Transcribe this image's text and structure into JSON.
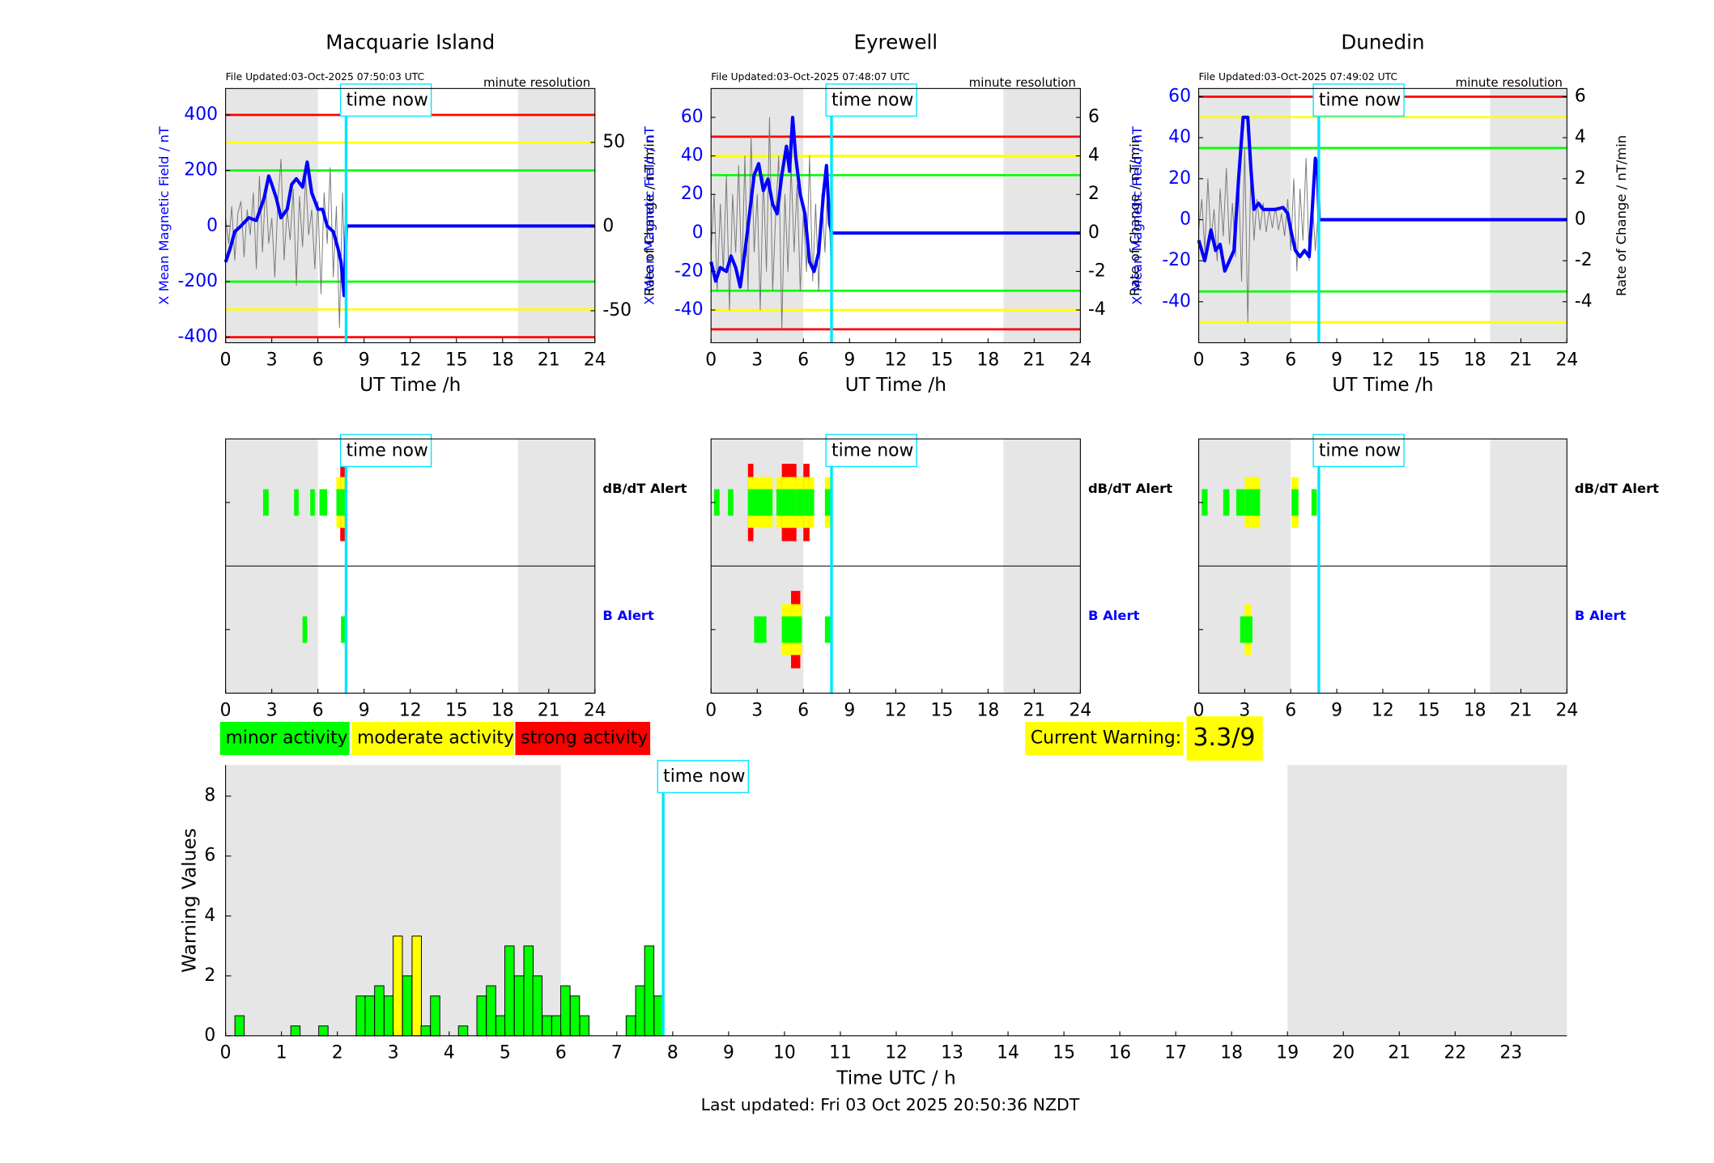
{
  "chart_data": [
    {
      "type": "line",
      "title": "Macquarie Island",
      "file_note": "File Updated:03-Oct-2025 07:50:03 UTC",
      "resolution": "minute resolution",
      "xlabel": "UT Time /h",
      "ylabel": "X Mean Magnetic Field / nT",
      "y2label": "Rate of Change / nT/min",
      "xlim": [
        0,
        24
      ],
      "xticks": [
        0,
        3,
        6,
        9,
        12,
        15,
        18,
        21,
        24
      ],
      "ylim": [
        -420,
        495
      ],
      "yticks": [
        -400,
        -200,
        0,
        200,
        400
      ],
      "y2lim": [
        -69,
        82
      ],
      "y2ticks": [
        -50,
        0,
        50
      ],
      "shade": [
        [
          0,
          6
        ],
        [
          19,
          24
        ]
      ],
      "time_now": 7.83,
      "time_now_label": "time now",
      "thresholds": [
        {
          "value": 400,
          "color": "#ff0000"
        },
        {
          "value": 300,
          "color": "#ffff00"
        },
        {
          "value": 200,
          "color": "#00ff00"
        },
        {
          "value": -200,
          "color": "#00ff00"
        },
        {
          "value": -300,
          "color": "#ffff00"
        },
        {
          "value": -400,
          "color": "#ff0000"
        }
      ],
      "series": [
        {
          "name": "Rate of Change",
          "axis": "y2",
          "color": "#777777",
          "x": [
            0,
            0.2,
            0.4,
            0.6,
            0.8,
            1,
            1.2,
            1.4,
            1.6,
            1.8,
            2,
            2.2,
            2.4,
            2.6,
            2.8,
            3,
            3.2,
            3.4,
            3.6,
            3.8,
            4,
            4.2,
            4.4,
            4.6,
            4.8,
            5,
            5.2,
            5.4,
            5.6,
            5.8,
            6,
            6.2,
            6.4,
            6.6,
            6.8,
            7,
            7.2,
            7.4,
            7.6,
            7.8
          ],
          "values": [
            5,
            -10,
            12,
            -20,
            8,
            15,
            -18,
            10,
            -5,
            20,
            -25,
            30,
            -15,
            25,
            -10,
            5,
            -30,
            15,
            40,
            -20,
            10,
            -8,
            22,
            -35,
            18,
            -12,
            30,
            -5,
            10,
            -25,
            15,
            -40,
            20,
            -10,
            35,
            -30,
            12,
            -60,
            20,
            -45
          ]
        },
        {
          "name": "X Mean Magnetic Field",
          "axis": "y",
          "color": "#0000ff",
          "x": [
            0,
            0.3,
            0.6,
            1,
            1.5,
            2,
            2.5,
            2.8,
            3,
            3.3,
            3.6,
            4,
            4.3,
            4.6,
            5,
            5.3,
            5.6,
            6,
            6.3,
            6.6,
            7,
            7.3,
            7.5,
            7.7,
            7.85,
            24
          ],
          "values": [
            -130,
            -80,
            -20,
            0,
            30,
            20,
            100,
            180,
            150,
            100,
            30,
            60,
            150,
            170,
            140,
            230,
            120,
            60,
            60,
            0,
            -20,
            -80,
            -130,
            -250,
            0,
            0
          ]
        }
      ]
    },
    {
      "type": "line",
      "title": "Eyrewell",
      "file_note": "File Updated:03-Oct-2025 07:48:07 UTC",
      "resolution": "minute resolution",
      "xlabel": "UT Time /h",
      "ylabel": "X Mean Magnetic Field / nT",
      "y2label": "Rate of Change / nT/min",
      "xlim": [
        0,
        24
      ],
      "xticks": [
        0,
        3,
        6,
        9,
        12,
        15,
        18,
        21,
        24
      ],
      "ylim": [
        -57,
        75
      ],
      "yticks": [
        -40,
        -20,
        0,
        20,
        40,
        60
      ],
      "y2lim": [
        -5.7,
        7.5
      ],
      "y2ticks": [
        -4,
        -2,
        0,
        2,
        4,
        6
      ],
      "shade": [
        [
          0,
          6
        ],
        [
          19,
          24
        ]
      ],
      "time_now": 7.83,
      "time_now_label": "time now",
      "thresholds": [
        {
          "value": 50,
          "color": "#ff0000"
        },
        {
          "value": 40,
          "color": "#ffff00"
        },
        {
          "value": 30,
          "color": "#00ff00"
        },
        {
          "value": -30,
          "color": "#00ff00"
        },
        {
          "value": -40,
          "color": "#ffff00"
        },
        {
          "value": -50,
          "color": "#ff0000"
        }
      ],
      "series": [
        {
          "name": "Rate of Change",
          "axis": "y2",
          "color": "#777777",
          "x": [
            0,
            0.2,
            0.4,
            0.6,
            0.8,
            1,
            1.2,
            1.4,
            1.6,
            1.8,
            2,
            2.2,
            2.4,
            2.6,
            2.8,
            3,
            3.2,
            3.4,
            3.6,
            3.8,
            4,
            4.2,
            4.4,
            4.6,
            4.8,
            5,
            5.2,
            5.4,
            5.6,
            5.8,
            6,
            6.2,
            6.4,
            6.6,
            6.8,
            7,
            7.2,
            7.4,
            7.6,
            7.8
          ],
          "values": [
            -1,
            2,
            -3,
            1.5,
            -2,
            3,
            -4,
            2,
            -1,
            3.5,
            -2.5,
            4,
            -3,
            5,
            -1,
            2,
            -4,
            3,
            -2,
            6,
            -3,
            1,
            4,
            -5,
            2,
            -2,
            3.5,
            -1,
            2.5,
            -3,
            1,
            -2,
            4,
            -2.5,
            1.5,
            -3,
            2,
            -1,
            3,
            -2
          ]
        },
        {
          "name": "X Mean Magnetic Field",
          "axis": "y",
          "color": "#0000ff",
          "x": [
            0,
            0.3,
            0.6,
            1,
            1.3,
            1.6,
            1.9,
            2.2,
            2.5,
            2.8,
            3.1,
            3.4,
            3.7,
            4,
            4.3,
            4.6,
            4.9,
            5.1,
            5.3,
            5.5,
            5.8,
            6.1,
            6.4,
            6.7,
            7,
            7.3,
            7.5,
            7.7,
            7.85,
            24
          ],
          "values": [
            -15,
            -25,
            -18,
            -20,
            -12,
            -18,
            -28,
            -10,
            10,
            30,
            36,
            22,
            28,
            15,
            10,
            30,
            45,
            32,
            60,
            40,
            20,
            10,
            -15,
            -20,
            -10,
            20,
            35,
            5,
            0,
            0
          ]
        }
      ]
    },
    {
      "type": "line",
      "title": "Dunedin",
      "file_note": "File Updated:03-Oct-2025 07:49:02 UTC",
      "resolution": "minute resolution",
      "xlabel": "UT Time /h",
      "ylabel": "X Mean Magnetic Field / nT",
      "y2label": "Rate of Change / nT/min",
      "xlim": [
        0,
        24
      ],
      "xticks": [
        0,
        3,
        6,
        9,
        12,
        15,
        18,
        21,
        24
      ],
      "ylim": [
        -60,
        64
      ],
      "yticks": [
        -40,
        -20,
        0,
        20,
        40,
        60
      ],
      "y2lim": [
        -6.0,
        6.4
      ],
      "y2ticks": [
        -4,
        -2,
        0,
        2,
        4,
        6
      ],
      "shade": [
        [
          0,
          6
        ],
        [
          19,
          24
        ]
      ],
      "time_now": 7.83,
      "time_now_label": "time now",
      "thresholds": [
        {
          "value": 60,
          "color": "#ff0000"
        },
        {
          "value": 50,
          "color": "#ffff00"
        },
        {
          "value": 35,
          "color": "#00ff00"
        },
        {
          "value": -35,
          "color": "#00ff00"
        },
        {
          "value": -50,
          "color": "#ffff00"
        }
      ],
      "series": [
        {
          "name": "Rate of Change",
          "axis": "y2",
          "color": "#777777",
          "x": [
            0,
            0.2,
            0.4,
            0.6,
            0.8,
            1,
            1.2,
            1.4,
            1.6,
            1.8,
            2,
            2.2,
            2.4,
            2.6,
            2.8,
            3,
            3.2,
            3.4,
            3.6,
            3.8,
            4,
            4.2,
            4.4,
            4.6,
            4.8,
            5,
            5.2,
            5.4,
            5.6,
            5.8,
            6,
            6.2,
            6.4,
            6.6,
            6.8,
            7,
            7.2,
            7.4,
            7.6,
            7.8
          ],
          "values": [
            -0.5,
            1,
            -1.5,
            2,
            -1,
            0.5,
            -2,
            1.5,
            -0.8,
            2.5,
            -1.2,
            0.8,
            -1.8,
            2,
            -3,
            3.5,
            -5,
            2.5,
            -1,
            1,
            -0.5,
            0.8,
            -0.6,
            0.5,
            -0.4,
            0.6,
            -0.5,
            0.3,
            -0.8,
            1,
            -1.5,
            2,
            -2.5,
            1.5,
            -1,
            3,
            -2,
            1,
            -1.5,
            0.5
          ]
        },
        {
          "name": "X Mean Magnetic Field",
          "axis": "y",
          "color": "#0000ff",
          "x": [
            0,
            0.4,
            0.8,
            1.1,
            1.4,
            1.7,
            2,
            2.3,
            2.6,
            2.9,
            3.2,
            3.4,
            3.6,
            3.9,
            4.2,
            4.5,
            5,
            5.5,
            5.8,
            6,
            6.3,
            6.6,
            6.9,
            7.2,
            7.4,
            7.6,
            7.75,
            7.85,
            24
          ],
          "values": [
            -10,
            -20,
            -5,
            -15,
            -12,
            -25,
            -20,
            -15,
            20,
            50,
            50,
            25,
            5,
            8,
            5,
            5,
            5,
            6,
            3,
            -5,
            -15,
            -18,
            -15,
            -18,
            5,
            30,
            25,
            0,
            0
          ]
        }
      ]
    },
    {
      "type": "alert",
      "xlim": [
        0,
        24
      ],
      "xticks": [
        0,
        3,
        6,
        9,
        12,
        15,
        18,
        21,
        24
      ],
      "shade": [
        [
          0,
          6
        ],
        [
          19,
          24
        ]
      ],
      "time_now": 7.83,
      "time_now_label": "time now",
      "level_colors": [
        "#00ff00",
        "#ffff00",
        "#ff0000"
      ],
      "rows": [
        {
          "name": "dB/dT Alert",
          "color": "#000000",
          "start": [
            2.44,
            4.45,
            5.5,
            6.1,
            7.2,
            7.45
          ],
          "end": [
            2.8,
            4.75,
            5.8,
            6.6,
            7.6,
            7.75
          ],
          "level": [
            1,
            1,
            1,
            1,
            2,
            3
          ]
        },
        {
          "name": "B Alert",
          "color": "#0000ff",
          "start": [
            5.0,
            7.5
          ],
          "end": [
            5.3,
            7.8
          ],
          "level": [
            1,
            1
          ]
        }
      ]
    },
    {
      "type": "alert",
      "xlim": [
        0,
        24
      ],
      "xticks": [
        0,
        3,
        6,
        9,
        12,
        15,
        18,
        21,
        24
      ],
      "shade": [
        [
          0,
          6
        ],
        [
          19,
          24
        ]
      ],
      "time_now": 7.83,
      "time_now_label": "time now",
      "level_colors": [
        "#00ff00",
        "#ffff00",
        "#ff0000"
      ],
      "rows": [
        {
          "name": "dB/dT Alert",
          "color": "#000000",
          "start": [
            0.2,
            1.1,
            2.4,
            2.75,
            4.25,
            4.6,
            5.55,
            6.0,
            6.4,
            7.4
          ],
          "end": [
            0.55,
            1.45,
            2.75,
            4.0,
            4.6,
            5.55,
            6.0,
            6.4,
            6.7,
            7.8
          ],
          "level": [
            1,
            1,
            3,
            2,
            2,
            3,
            2,
            3,
            2,
            2
          ]
        },
        {
          "name": "B Alert",
          "color": "#0000ff",
          "start": [
            2.8,
            4.6,
            5.2,
            7.4
          ],
          "end": [
            3.6,
            5.9,
            5.8,
            7.8
          ],
          "level": [
            1,
            2,
            3,
            1
          ]
        }
      ]
    },
    {
      "type": "alert",
      "xlim": [
        0,
        24
      ],
      "xticks": [
        0,
        3,
        6,
        9,
        12,
        15,
        18,
        21,
        24
      ],
      "shade": [
        [
          0,
          6
        ],
        [
          19,
          24
        ]
      ],
      "time_now": 7.83,
      "time_now_label": "time now",
      "level_colors": [
        "#00ff00",
        "#ffff00",
        "#ff0000"
      ],
      "rows": [
        {
          "name": "dB/dT Alert",
          "color": "#000000",
          "start": [
            0.2,
            1.6,
            2.45,
            3.0,
            6.05,
            7.35
          ],
          "end": [
            0.58,
            2.0,
            3.0,
            4.0,
            6.5,
            7.7
          ],
          "level": [
            1,
            1,
            1,
            2,
            2,
            1
          ]
        },
        {
          "name": "B Alert",
          "color": "#0000ff",
          "start": [
            2.7,
            3.0
          ],
          "end": [
            3.5,
            3.4
          ],
          "level": [
            1,
            2
          ]
        }
      ]
    },
    {
      "type": "bar",
      "xlabel": "Time UTC / h",
      "ylabel": "Warning Values",
      "xlim": [
        0,
        24
      ],
      "xticks": [
        0,
        1,
        2,
        3,
        4,
        5,
        6,
        7,
        8,
        9,
        10,
        11,
        12,
        13,
        14,
        15,
        16,
        17,
        18,
        19,
        20,
        21,
        22,
        23
      ],
      "ylim": [
        0,
        9.04
      ],
      "yticks": [
        0,
        2,
        4,
        6,
        8
      ],
      "shade": [
        [
          0,
          6
        ],
        [
          19,
          24
        ]
      ],
      "time_now": 7.83,
      "time_now_label": "time now",
      "bar_width": 0.1667,
      "x": [
        0.25,
        1.25,
        1.75,
        2.42,
        2.58,
        2.75,
        2.92,
        3.08,
        3.25,
        3.42,
        3.58,
        3.75,
        4.25,
        4.58,
        4.75,
        4.92,
        5.08,
        5.25,
        5.42,
        5.58,
        5.75,
        5.92,
        6.08,
        6.25,
        6.42,
        7.25,
        7.42,
        7.58,
        7.75
      ],
      "values": [
        0.67,
        0.33,
        0.33,
        1.33,
        1.33,
        1.67,
        1.33,
        3.33,
        2,
        3.33,
        0.33,
        1.33,
        0.33,
        1.33,
        1.67,
        0.67,
        3,
        2,
        3,
        2,
        0.67,
        0.67,
        1.67,
        1.33,
        0.67,
        0.67,
        1.67,
        3,
        1.33
      ],
      "colors": [
        "#00ff00",
        "#00ff00",
        "#00ff00",
        "#00ff00",
        "#00ff00",
        "#00ff00",
        "#00ff00",
        "#ffff00",
        "#00ff00",
        "#ffff00",
        "#00ff00",
        "#00ff00",
        "#00ff00",
        "#00ff00",
        "#00ff00",
        "#00ff00",
        "#00ff00",
        "#00ff00",
        "#00ff00",
        "#00ff00",
        "#00ff00",
        "#00ff00",
        "#00ff00",
        "#00ff00",
        "#00ff00",
        "#00ff00",
        "#00ff00",
        "#00ff00",
        "#00ff00"
      ]
    }
  ],
  "legend": [
    {
      "label": "minor activity",
      "color": "#00ff00"
    },
    {
      "label": "moderate activity",
      "color": "#ffff00"
    },
    {
      "label": "strong activity",
      "color": "#ff0000"
    }
  ],
  "current_warning": {
    "label": "Current Warning:",
    "value": "3.3/9",
    "color": "#ffff00"
  },
  "footer": "Last updated: Fri 03 Oct 2025 20:50:36 NZDT"
}
